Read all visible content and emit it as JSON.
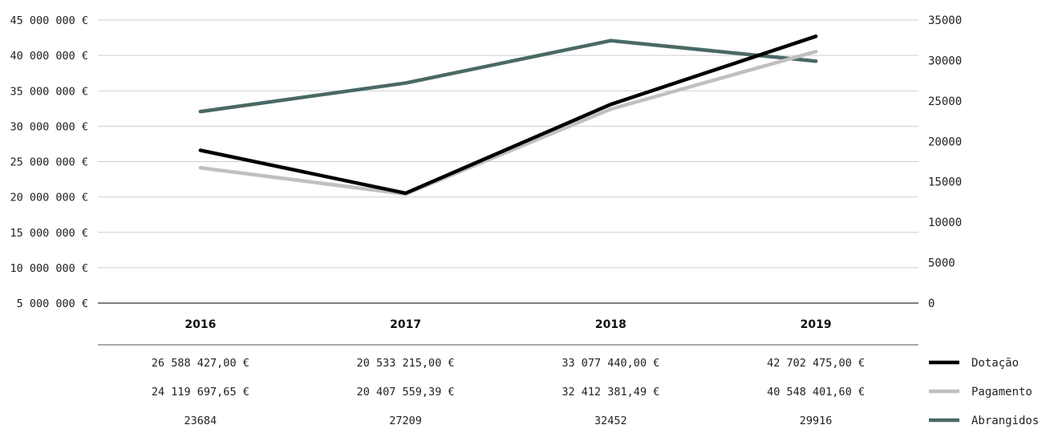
{
  "chart_data": {
    "type": "line",
    "categories": [
      "2016",
      "2017",
      "2018",
      "2019"
    ],
    "y_left": {
      "ylim": [
        5000000,
        45000000
      ],
      "ticks": [
        5000000,
        10000000,
        15000000,
        20000000,
        25000000,
        30000000,
        35000000,
        40000000,
        45000000
      ],
      "tick_labels": [
        "5 000 000 €",
        "10 000 000 €",
        "15 000 000 €",
        "20 000 000 €",
        "25 000 000 €",
        "30 000 000 €",
        "35 000 000 €",
        "40 000 000 €",
        "45 000 000 €"
      ]
    },
    "y_right": {
      "ylim": [
        0,
        35000
      ],
      "ticks": [
        0,
        5000,
        10000,
        15000,
        20000,
        25000,
        30000,
        35000
      ],
      "tick_labels": [
        "0",
        "5000",
        "10000",
        "15000",
        "20000",
        "25000",
        "30000",
        "35000"
      ]
    },
    "grid": true,
    "legend": "right of data table",
    "series": [
      {
        "name": "Dotação",
        "axis": "left",
        "color": "#000000",
        "values": [
          26588427.0,
          20533215.0,
          33077440.0,
          42702475.0
        ],
        "value_labels": [
          "26 588 427,00 €",
          "20 533 215,00 €",
          "33 077 440,00 €",
          "42 702 475,00 €"
        ]
      },
      {
        "name": "Pagamento",
        "axis": "left",
        "color": "#c0c0c0",
        "values": [
          24119697.65,
          20407559.39,
          32412381.49,
          40548401.6
        ],
        "value_labels": [
          "24 119 697,65 €",
          "20 407 559,39 €",
          "32 412 381,49 €",
          "40 548 401,60 €"
        ]
      },
      {
        "name": "Abrangidos",
        "axis": "right",
        "color": "#4a6965",
        "values": [
          23684,
          27209,
          32452,
          29916
        ],
        "value_labels": [
          "23684",
          "27209",
          "32452",
          "29916"
        ]
      }
    ]
  }
}
